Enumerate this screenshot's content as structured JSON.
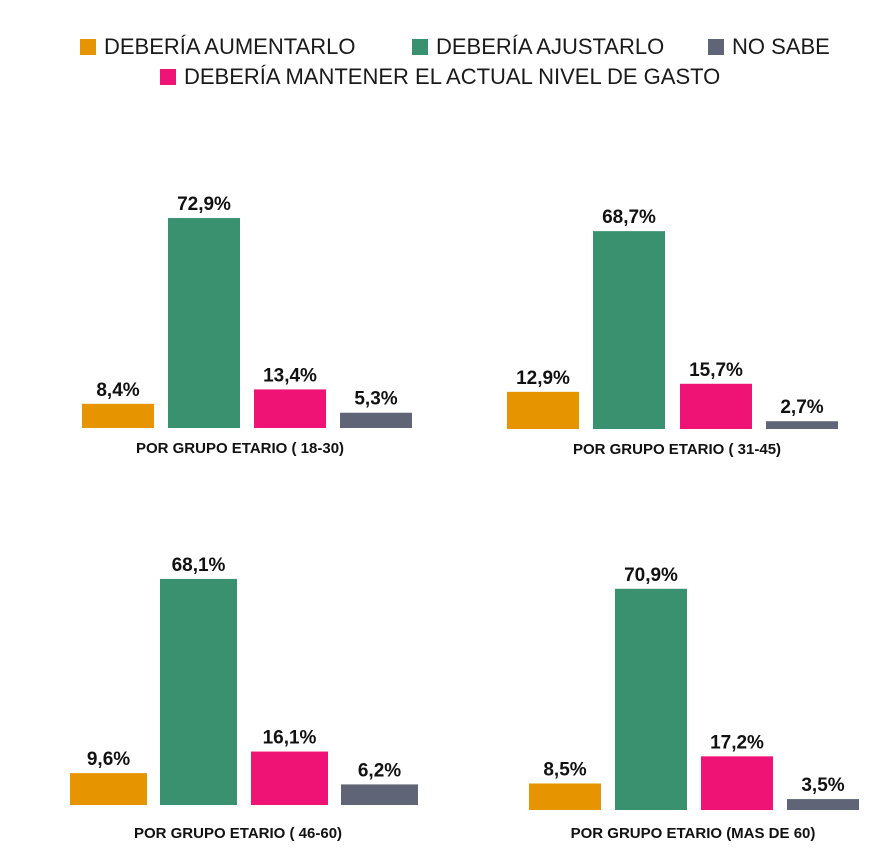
{
  "legend": [
    {
      "label": "DEBERÍA AUMENTARLO",
      "color": "#E69500",
      "icon": "square-swatch"
    },
    {
      "label": "DEBERÍA AJUSTARLO",
      "color": "#3A9170",
      "icon": "square-swatch"
    },
    {
      "label": "NO SABE",
      "color": "#5F6577",
      "icon": "square-swatch"
    },
    {
      "label": "DEBERÍA MANTENER EL ACTUAL NIVEL DE GASTO",
      "color": "#EE1374",
      "icon": "square-swatch"
    }
  ],
  "chart_data": [
    {
      "type": "bar",
      "title": "POR GRUPO ETARIO ( 18-30)",
      "categories": [
        "DEBERÍA AUMENTARLO",
        "DEBERÍA AJUSTARLO",
        "DEBERÍA MANTENER EL ACTUAL NIVEL DE GASTO",
        "NO SABE"
      ],
      "values": [
        8.4,
        72.9,
        13.4,
        5.3
      ],
      "labels": [
        "8,4%",
        "72,9%",
        "13,4%",
        "5,3%"
      ],
      "colors": [
        "#E69500",
        "#3A9170",
        "#EE1374",
        "#5F6577"
      ],
      "ylim": [
        0,
        100
      ],
      "grid": false
    },
    {
      "type": "bar",
      "title": "POR GRUPO ETARIO ( 31-45)",
      "categories": [
        "DEBERÍA AUMENTARLO",
        "DEBERÍA AJUSTARLO",
        "DEBERÍA MANTENER EL ACTUAL NIVEL DE GASTO",
        "NO SABE"
      ],
      "values": [
        12.9,
        68.7,
        15.7,
        2.7
      ],
      "labels": [
        "12,9%",
        "68,7%",
        "15,7%",
        "2,7%"
      ],
      "colors": [
        "#E69500",
        "#3A9170",
        "#EE1374",
        "#5F6577"
      ],
      "ylim": [
        0,
        100
      ],
      "grid": false
    },
    {
      "type": "bar",
      "title": "POR GRUPO ETARIO ( 46-60)",
      "categories": [
        "DEBERÍA AUMENTARLO",
        "DEBERÍA AJUSTARLO",
        "DEBERÍA MANTENER EL ACTUAL NIVEL DE GASTO",
        "NO SABE"
      ],
      "values": [
        9.6,
        68.1,
        16.1,
        6.2
      ],
      "labels": [
        "9,6%",
        "68,1%",
        "16,1%",
        "6,2%"
      ],
      "colors": [
        "#E69500",
        "#3A9170",
        "#EE1374",
        "#5F6577"
      ],
      "ylim": [
        0,
        100
      ],
      "grid": false
    },
    {
      "type": "bar",
      "title": "POR GRUPO ETARIO (MAS DE 60)",
      "categories": [
        "DEBERÍA AUMENTARLO",
        "DEBERÍA AJUSTARLO",
        "DEBERÍA MANTENER EL ACTUAL NIVEL DE GASTO",
        "NO SABE"
      ],
      "values": [
        8.5,
        70.9,
        17.2,
        3.5
      ],
      "labels": [
        "8,5%",
        "70,9%",
        "17,2%",
        "3,5%"
      ],
      "colors": [
        "#E69500",
        "#3A9170",
        "#EE1374",
        "#5F6577"
      ],
      "ylim": [
        0,
        100
      ],
      "grid": false
    }
  ]
}
